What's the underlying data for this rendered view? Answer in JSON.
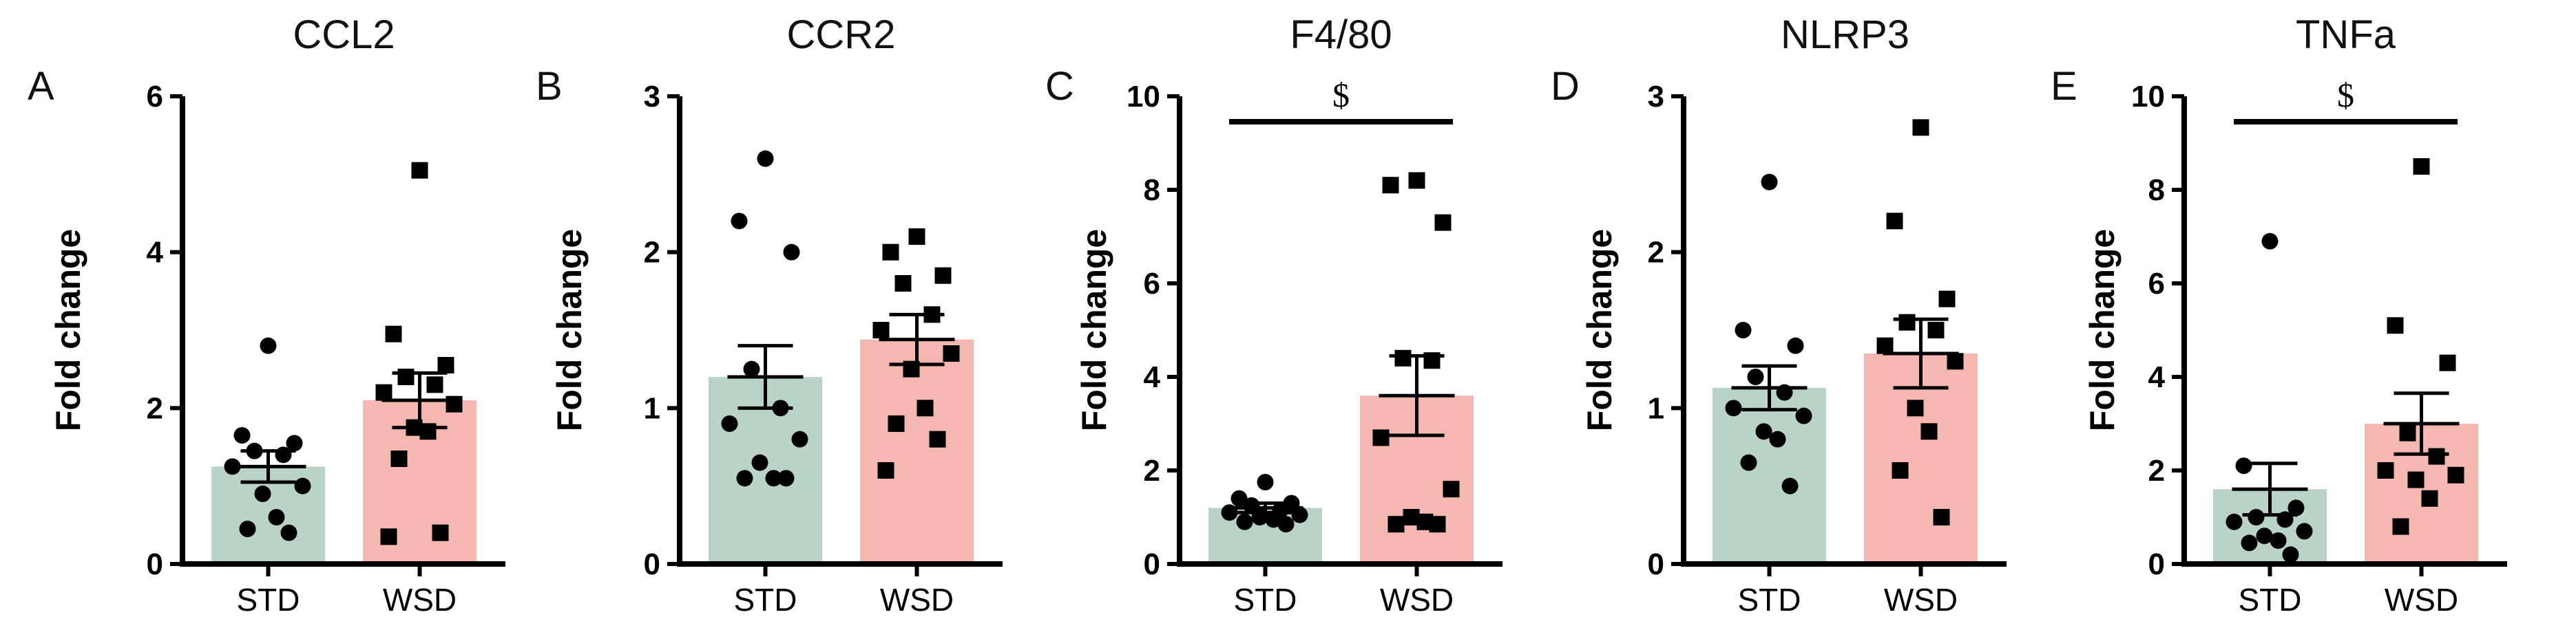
{
  "colors": {
    "std_bar": "#b9d3c6",
    "wsd_bar": "#f4b8b0",
    "ink": "#000000"
  },
  "chart_data": [
    {
      "type": "bar",
      "panel": "A",
      "title": "CCL2",
      "ylabel": "Fold change",
      "categories": [
        "STD",
        "WSD"
      ],
      "ylim": [
        0,
        6
      ],
      "yticks": [
        0,
        2,
        4,
        6
      ],
      "series": [
        {
          "name": "STD",
          "mean": 1.25,
          "sem": 0.2,
          "marker": "circle",
          "points": [
            2.8,
            1.65,
            1.55,
            1.45,
            1.4,
            1.25,
            1.0,
            0.9,
            0.6,
            0.45,
            0.4
          ]
        },
        {
          "name": "WSD",
          "mean": 2.1,
          "sem": 0.35,
          "marker": "square",
          "points": [
            5.05,
            2.95,
            2.55,
            2.4,
            2.3,
            2.2,
            2.05,
            1.75,
            1.7,
            1.35,
            0.4,
            0.35
          ]
        }
      ],
      "significance": null
    },
    {
      "type": "bar",
      "panel": "B",
      "title": "CCR2",
      "ylabel": "Fold change",
      "categories": [
        "STD",
        "WSD"
      ],
      "ylim": [
        0,
        3
      ],
      "yticks": [
        0,
        1,
        2,
        3
      ],
      "series": [
        {
          "name": "STD",
          "mean": 1.2,
          "sem": 0.2,
          "marker": "circle",
          "points": [
            2.6,
            2.2,
            2.0,
            1.25,
            1.0,
            0.9,
            0.8,
            0.65,
            0.55,
            0.55,
            0.55
          ]
        },
        {
          "name": "WSD",
          "mean": 1.44,
          "sem": 0.16,
          "marker": "square",
          "points": [
            2.1,
            2.0,
            1.85,
            1.8,
            1.6,
            1.5,
            1.35,
            1.25,
            1.0,
            0.9,
            0.8,
            0.6
          ]
        }
      ],
      "significance": null
    },
    {
      "type": "bar",
      "panel": "C",
      "title": "F4/80",
      "ylabel": "Fold change",
      "categories": [
        "STD",
        "WSD"
      ],
      "ylim": [
        0,
        10
      ],
      "yticks": [
        0,
        2,
        4,
        6,
        8,
        10
      ],
      "series": [
        {
          "name": "STD",
          "mean": 1.2,
          "sem": 0.1,
          "marker": "circle",
          "points": [
            1.75,
            1.4,
            1.3,
            1.25,
            1.15,
            1.1,
            1.05,
            1.0,
            0.95,
            0.9,
            0.85
          ]
        },
        {
          "name": "WSD",
          "mean": 3.6,
          "sem": 0.85,
          "marker": "square",
          "points": [
            8.2,
            8.1,
            7.3,
            4.4,
            4.35,
            2.7,
            1.6,
            1.0,
            0.9,
            0.85,
            0.85
          ]
        }
      ],
      "significance": {
        "label": "$"
      }
    },
    {
      "type": "bar",
      "panel": "D",
      "title": "NLRP3",
      "ylabel": "Fold change",
      "categories": [
        "STD",
        "WSD"
      ],
      "ylim": [
        0,
        3
      ],
      "yticks": [
        0,
        1,
        2,
        3
      ],
      "series": [
        {
          "name": "STD",
          "mean": 1.13,
          "sem": 0.14,
          "marker": "circle",
          "points": [
            2.45,
            1.5,
            1.4,
            1.2,
            1.1,
            1.0,
            0.95,
            0.85,
            0.8,
            0.65,
            0.5
          ]
        },
        {
          "name": "WSD",
          "mean": 1.35,
          "sem": 0.22,
          "marker": "square",
          "points": [
            2.8,
            2.2,
            1.7,
            1.55,
            1.5,
            1.4,
            1.3,
            1.0,
            0.85,
            0.6,
            0.3
          ]
        }
      ],
      "significance": null
    },
    {
      "type": "bar",
      "panel": "E",
      "title": "TNFa",
      "ylabel": "Fold change",
      "categories": [
        "STD",
        "WSD"
      ],
      "ylim": [
        0,
        10
      ],
      "yticks": [
        0,
        2,
        4,
        6,
        8,
        10
      ],
      "series": [
        {
          "name": "STD",
          "mean": 1.6,
          "sem": 0.55,
          "marker": "circle",
          "points": [
            6.9,
            2.1,
            1.2,
            1.0,
            0.95,
            0.9,
            0.7,
            0.6,
            0.5,
            0.45,
            0.2
          ]
        },
        {
          "name": "WSD",
          "mean": 3.0,
          "sem": 0.65,
          "marker": "square",
          "points": [
            8.5,
            5.1,
            4.3,
            2.8,
            2.3,
            2.0,
            1.9,
            1.8,
            1.4,
            0.8
          ]
        }
      ],
      "significance": {
        "label": "$"
      }
    }
  ]
}
